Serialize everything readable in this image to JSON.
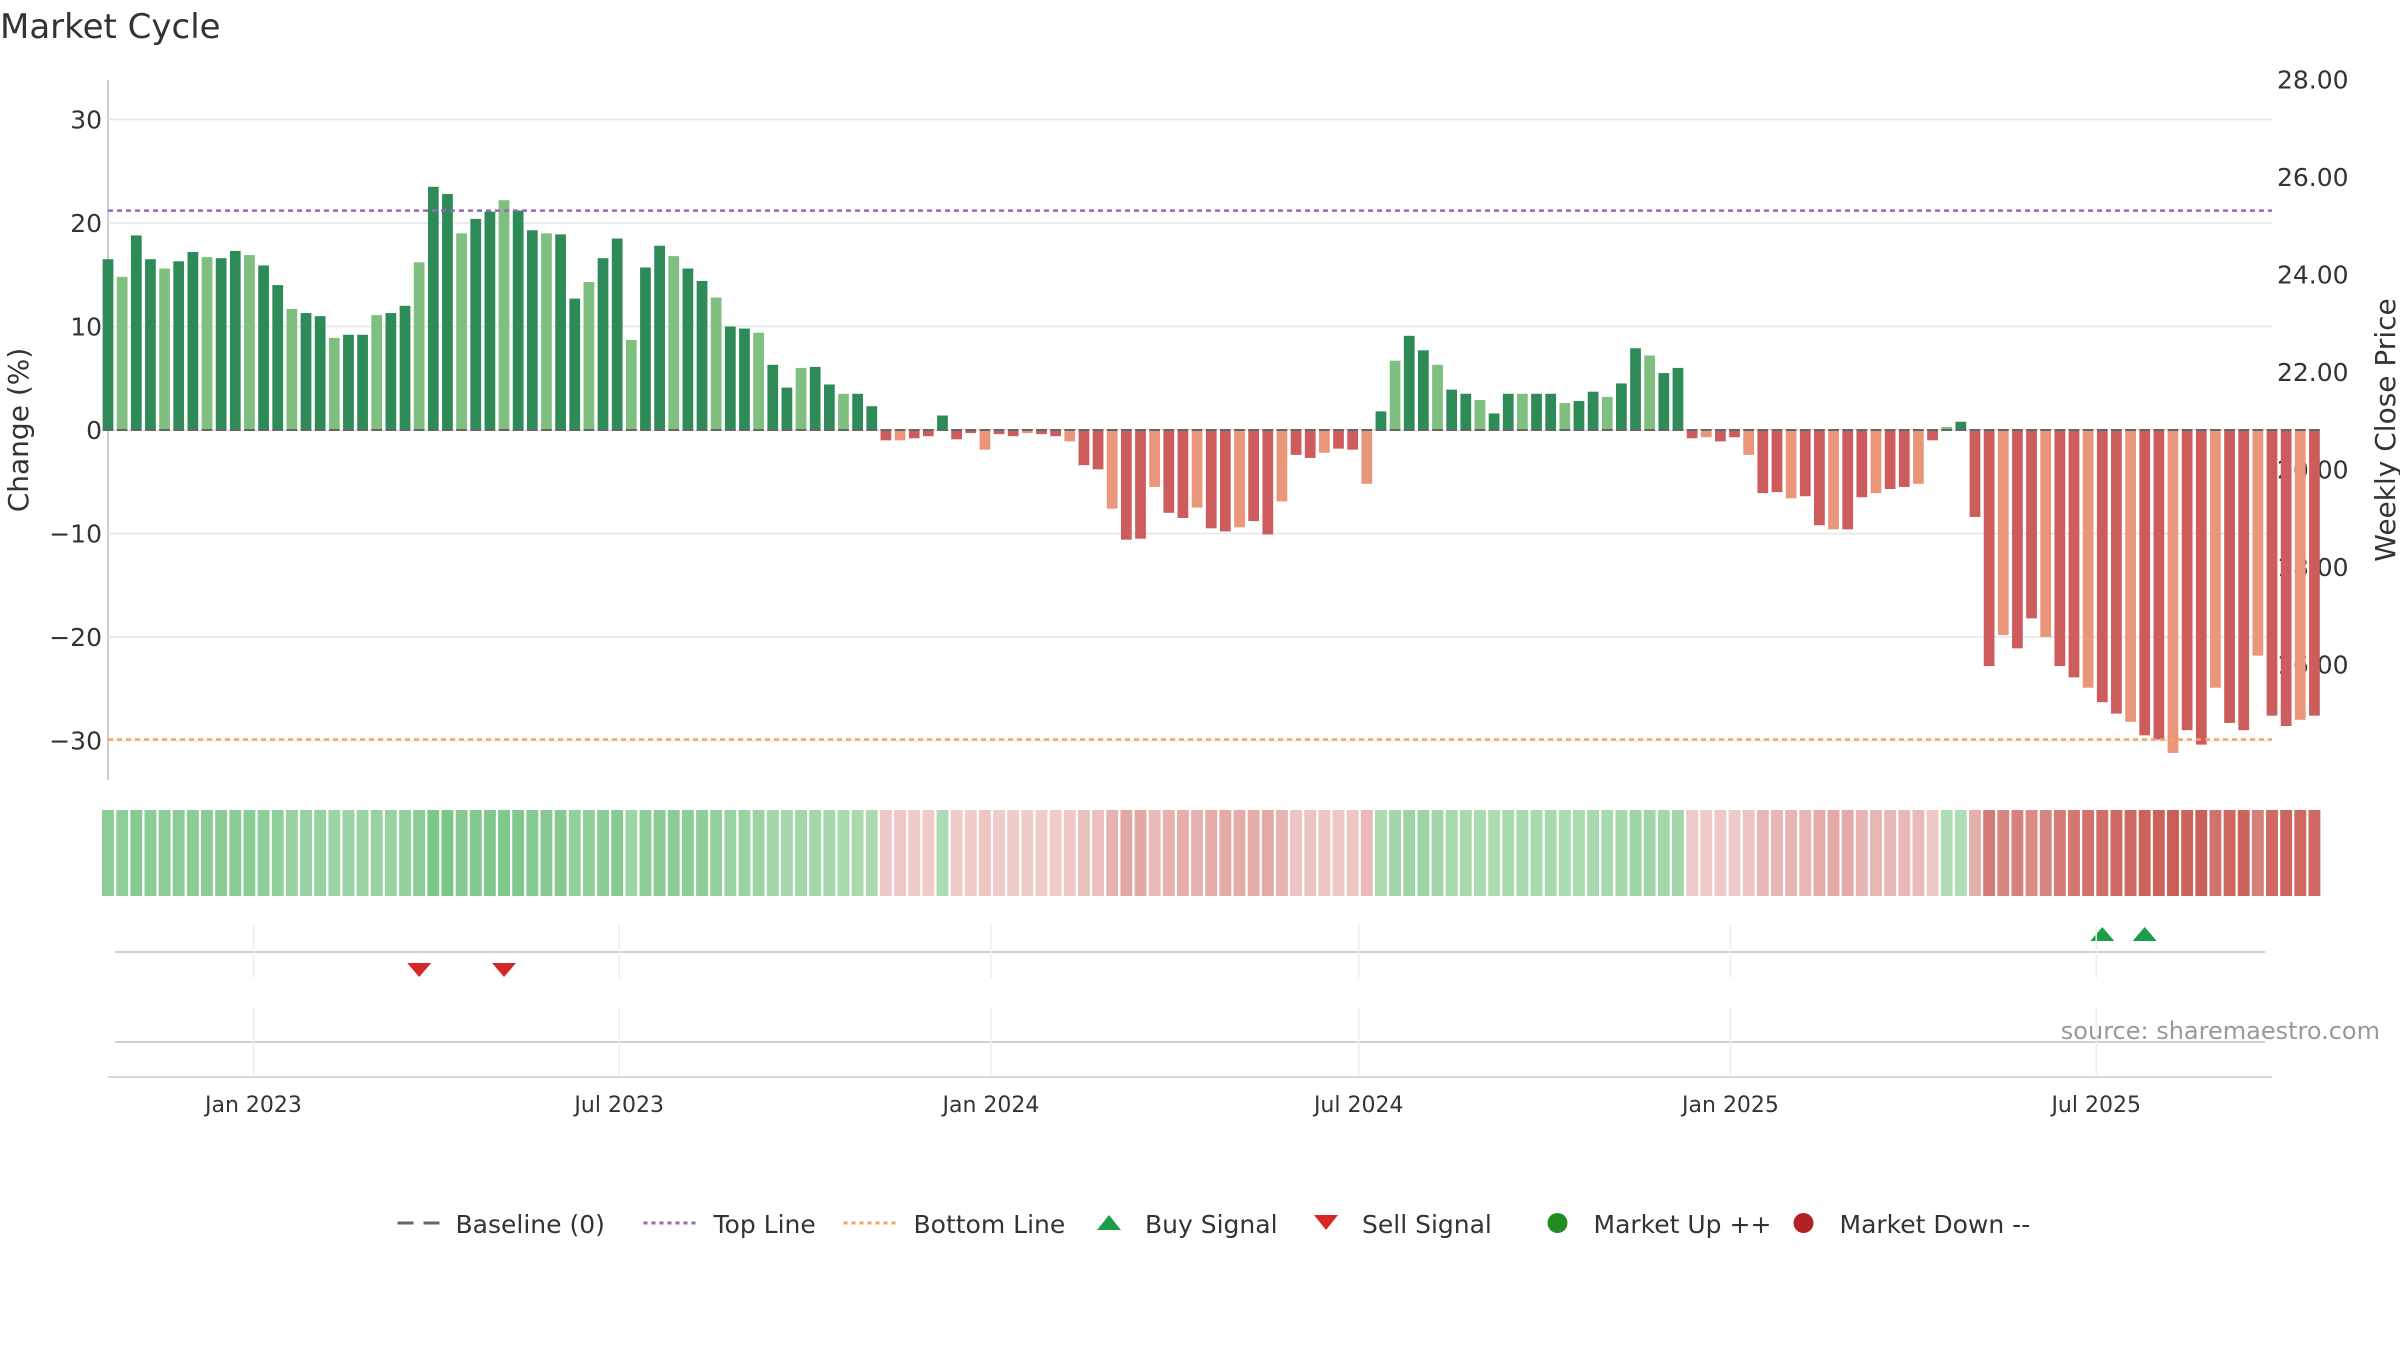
{
  "page": {
    "title": "Market Cycle",
    "source": "source: sharemaestro.com"
  },
  "chart_data": {
    "type": "bar",
    "title": "Market Cycle",
    "ylabel": "Change (%)",
    "y2label": "Weekly Close Price",
    "ylim": [
      -34,
      34
    ],
    "y_ticks": [
      30,
      20,
      10,
      0,
      -10,
      -20,
      -30
    ],
    "y_tick_labels": [
      "30",
      "20",
      "10",
      "0",
      "−10",
      "−20",
      "−30"
    ],
    "y2_ticks": [
      28,
      26,
      24,
      22,
      20,
      18,
      16
    ],
    "y2_tick_labels": [
      "28.00",
      "26.00",
      "24.00",
      "22.00",
      "20.00",
      "18.00",
      "16.00"
    ],
    "x_date_range": [
      "2022-10-21",
      "2025-09-26"
    ],
    "x_ticks": [
      {
        "date": "2023-01-01",
        "label": "Jan 2023"
      },
      {
        "date": "2023-07-01",
        "label": "Jul 2023"
      },
      {
        "date": "2024-01-01",
        "label": "Jan 2024"
      },
      {
        "date": "2024-07-01",
        "label": "Jul 2024"
      },
      {
        "date": "2025-01-01",
        "label": "Jan 2025"
      },
      {
        "date": "2025-07-01",
        "label": "Jul 2025"
      }
    ],
    "first_bar_date": "2022-10-21",
    "bar_interval_days": 7,
    "values": [
      16.5,
      14.8,
      18.8,
      16.5,
      15.6,
      16.3,
      17.2,
      16.7,
      16.6,
      17.3,
      16.9,
      15.9,
      14.0,
      11.7,
      11.3,
      11.0,
      8.9,
      9.2,
      9.2,
      11.1,
      11.3,
      12.0,
      16.2,
      23.5,
      22.8,
      19.0,
      20.4,
      21.1,
      22.2,
      21.2,
      19.3,
      19.0,
      18.9,
      12.7,
      14.3,
      16.6,
      18.5,
      8.7,
      15.7,
      17.8,
      16.8,
      15.6,
      14.4,
      12.8,
      10.0,
      9.8,
      9.4,
      6.3,
      4.1,
      6.0,
      6.1,
      4.4,
      3.5,
      3.5,
      2.3,
      -1.0,
      -1.0,
      -0.8,
      -0.6,
      1.4,
      -0.9,
      -0.3,
      -1.9,
      -0.4,
      -0.6,
      -0.3,
      -0.4,
      -0.6,
      -1.1,
      -3.4,
      -3.8,
      -7.6,
      -10.6,
      -10.5,
      -5.5,
      -8.0,
      -8.5,
      -7.5,
      -9.5,
      -9.8,
      -9.4,
      -8.8,
      -10.1,
      -6.9,
      -2.4,
      -2.7,
      -2.2,
      -1.8,
      -1.9,
      -5.2,
      1.8,
      6.7,
      9.1,
      7.7,
      6.3,
      3.9,
      3.5,
      2.9,
      1.6,
      3.5,
      3.5,
      3.5,
      3.5,
      2.6,
      2.8,
      3.7,
      3.2,
      4.5,
      7.9,
      7.2,
      5.5,
      6.0,
      -0.8,
      -0.7,
      -1.1,
      -0.7,
      -2.4,
      -6.1,
      -6.0,
      -6.6,
      -6.4,
      -9.2,
      -9.6,
      -9.6,
      -6.5,
      -6.1,
      -5.7,
      -5.5,
      -5.2,
      -1.0,
      0.3,
      0.8,
      -8.4,
      -22.8,
      -19.8,
      -21.1,
      -18.2,
      -20.0,
      -22.8,
      -23.9,
      -24.9,
      -26.3,
      -27.4,
      -28.2,
      -29.5,
      -29.9,
      -31.2,
      -29.0,
      -30.4,
      -24.9,
      -28.3,
      -29.0,
      -21.8,
      -27.6,
      -28.6,
      -28.0,
      -27.6
    ],
    "top_line": 21.2,
    "bottom_line": -29.9,
    "baseline": 0,
    "signals": [
      {
        "type": "sell",
        "date": "2023-03-24"
      },
      {
        "type": "sell",
        "date": "2023-05-05"
      },
      {
        "type": "buy",
        "date": "2025-07-04"
      },
      {
        "type": "buy",
        "date": "2025-07-25"
      }
    ],
    "colors": {
      "positive_strong": "#2e8b57",
      "positive_light": "#7fbf7f",
      "negative_strong": "#cd5c5c",
      "negative_light": "#e9967a",
      "top_line": "#9467bd",
      "bottom_line": "#f4a460",
      "baseline": "#666666",
      "buy": "#1a9e4a",
      "sell": "#d62728",
      "market_up": "#228b22",
      "market_down": "#b22222"
    },
    "grid": true,
    "legend_position": "bottom-center",
    "legend": [
      {
        "kind": "dash",
        "label": "Baseline (0)",
        "color": "#666666"
      },
      {
        "kind": "dotted",
        "label": "Top Line",
        "color": "#9467bd"
      },
      {
        "kind": "dotted",
        "label": "Bottom Line",
        "color": "#f4a460"
      },
      {
        "kind": "tri-up",
        "label": "Buy Signal",
        "color": "#1a9e4a"
      },
      {
        "kind": "tri-down",
        "label": "Sell Signal",
        "color": "#d62728"
      },
      {
        "kind": "circle",
        "label": "Market Up ++",
        "color": "#228b22"
      },
      {
        "kind": "circle",
        "label": "Market Down --",
        "color": "#b22222"
      }
    ]
  }
}
